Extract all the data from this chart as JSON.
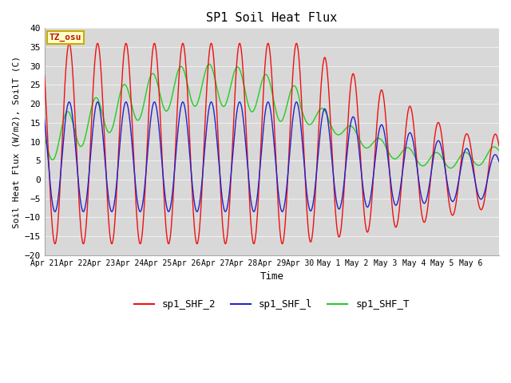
{
  "title": "SP1 Soil Heat Flux",
  "xlabel": "Time",
  "ylabel": "Soil Heat Flux (W/m2), SoilT (C)",
  "ylim": [
    -20,
    40
  ],
  "yticks": [
    -20,
    -15,
    -10,
    -5,
    0,
    5,
    10,
    15,
    20,
    25,
    30,
    35,
    40
  ],
  "annotation_text": "TZ_osu",
  "annotation_color": "#bb1100",
  "annotation_bg": "#ffffcc",
  "annotation_border": "#ccaa00",
  "fig_bg": "#ffffff",
  "plot_bg": "#d8d8d8",
  "grid_color": "#eeeeee",
  "series": {
    "sp1_SHF_2": {
      "color": "#ee1111",
      "linewidth": 1.0
    },
    "sp1_SHF_l": {
      "color": "#2222cc",
      "linewidth": 1.0
    },
    "sp1_SHF_T": {
      "color": "#22cc22",
      "linewidth": 1.0
    }
  },
  "x_tick_labels": [
    "Apr 21",
    "Apr 22",
    "Apr 23",
    "Apr 24",
    "Apr 25",
    "Apr 26",
    "Apr 27",
    "Apr 28",
    "Apr 29",
    "Apr 30",
    "May 1",
    "May 2",
    "May 3",
    "May 4",
    "May 5",
    "May 6"
  ],
  "n_days": 16,
  "points_per_day": 96,
  "legend_labels": [
    "sp1_SHF_2",
    "sp1_SHF_l",
    "sp1_SHF_T"
  ]
}
